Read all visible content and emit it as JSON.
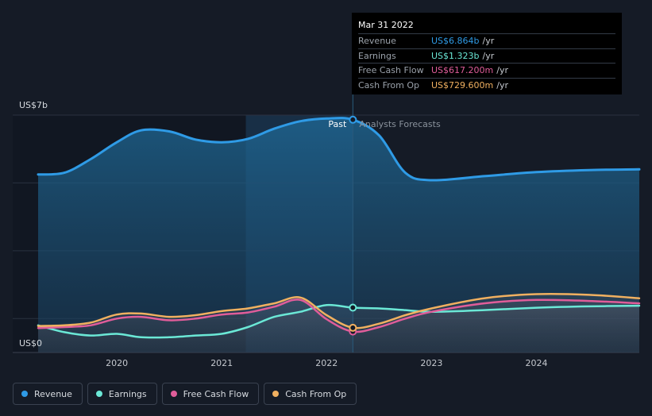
{
  "tooltip": {
    "date": "Mar 31 2022",
    "rows": [
      {
        "label": "Revenue",
        "value": "US$6.864b",
        "unit": "/yr",
        "color": "#2f9be6"
      },
      {
        "label": "Earnings",
        "value": "US$1.323b",
        "unit": "/yr",
        "color": "#6be8d6"
      },
      {
        "label": "Free Cash Flow",
        "value": "US$617.200m",
        "unit": "/yr",
        "color": "#e05d9a"
      },
      {
        "label": "Cash From Op",
        "value": "US$729.600m",
        "unit": "/yr",
        "color": "#f0b060"
      }
    ]
  },
  "chart_data": {
    "type": "area",
    "y_top_label": "US$7b",
    "y_bottom_label": "US$0",
    "ylim": [
      0,
      7
    ],
    "xlim": [
      2019.25,
      2024.98
    ],
    "x_ticks": [
      {
        "value": 2020,
        "label": "2020"
      },
      {
        "value": 2021,
        "label": "2021"
      },
      {
        "value": 2022,
        "label": "2022"
      },
      {
        "value": 2023,
        "label": "2023"
      },
      {
        "value": 2024,
        "label": "2024"
      }
    ],
    "past_label": "Past",
    "forecast_label": "Analysts Forecasts",
    "highlight_start": 2021.23,
    "divider_x": 2022.25,
    "series": [
      {
        "name": "Revenue",
        "color": "#2f9be6",
        "x": [
          2019.25,
          2019.5,
          2019.75,
          2020.0,
          2020.23,
          2020.5,
          2020.75,
          2021.0,
          2021.25,
          2021.5,
          2021.75,
          2022.0,
          2022.25,
          2022.5,
          2022.75,
          2023.0,
          2023.5,
          2024.0,
          2024.5,
          2024.98
        ],
        "y": [
          5.25,
          5.3,
          5.7,
          6.2,
          6.55,
          6.52,
          6.28,
          6.2,
          6.3,
          6.6,
          6.82,
          6.9,
          6.864,
          6.4,
          5.3,
          5.08,
          5.2,
          5.32,
          5.38,
          5.4
        ]
      },
      {
        "name": "Earnings",
        "color": "#6be8d6",
        "x": [
          2019.25,
          2019.5,
          2019.75,
          2020.0,
          2020.23,
          2020.5,
          2020.75,
          2021.0,
          2021.25,
          2021.5,
          2021.75,
          2022.0,
          2022.25,
          2022.5,
          2022.75,
          2023.0,
          2023.5,
          2024.0,
          2024.5,
          2024.98
        ],
        "y": [
          0.8,
          0.6,
          0.5,
          0.55,
          0.45,
          0.45,
          0.5,
          0.55,
          0.75,
          1.05,
          1.2,
          1.4,
          1.323,
          1.3,
          1.25,
          1.2,
          1.25,
          1.32,
          1.36,
          1.38
        ]
      },
      {
        "name": "Free Cash Flow",
        "color": "#e05d9a",
        "x": [
          2019.25,
          2019.5,
          2019.75,
          2020.0,
          2020.23,
          2020.5,
          2020.75,
          2021.0,
          2021.25,
          2021.5,
          2021.75,
          2022.0,
          2022.25,
          2022.5,
          2022.75,
          2023.0,
          2023.5,
          2024.0,
          2024.5,
          2024.98
        ],
        "y": [
          0.72,
          0.75,
          0.8,
          1.0,
          1.05,
          0.95,
          1.0,
          1.12,
          1.18,
          1.35,
          1.55,
          0.98,
          0.6172,
          0.75,
          1.0,
          1.2,
          1.45,
          1.55,
          1.52,
          1.45
        ]
      },
      {
        "name": "Cash From Op",
        "color": "#f0b060",
        "x": [
          2019.25,
          2019.5,
          2019.75,
          2020.0,
          2020.23,
          2020.5,
          2020.75,
          2021.0,
          2021.25,
          2021.5,
          2021.75,
          2022.0,
          2022.25,
          2022.5,
          2022.75,
          2023.0,
          2023.5,
          2024.0,
          2024.5,
          2024.98
        ],
        "y": [
          0.78,
          0.8,
          0.88,
          1.12,
          1.15,
          1.05,
          1.1,
          1.22,
          1.3,
          1.45,
          1.62,
          1.1,
          0.7296,
          0.85,
          1.1,
          1.3,
          1.6,
          1.72,
          1.7,
          1.6
        ]
      }
    ]
  },
  "legend": [
    {
      "label": "Revenue",
      "color": "#2f9be6"
    },
    {
      "label": "Earnings",
      "color": "#6be8d6"
    },
    {
      "label": "Free Cash Flow",
      "color": "#e05d9a"
    },
    {
      "label": "Cash From Op",
      "color": "#f0b060"
    }
  ]
}
